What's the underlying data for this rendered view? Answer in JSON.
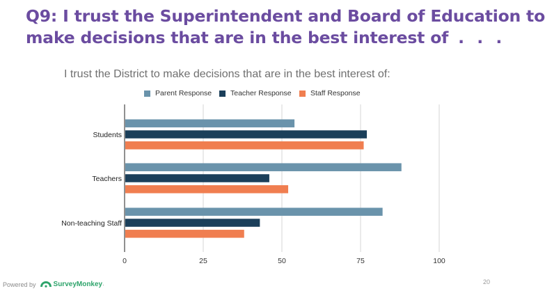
{
  "slide": {
    "title_line1": "Q9: I trust the Superintendent and Board of Education to",
    "title_line2": "make decisions that are in the best interest of",
    "title_ellipsis": ". . .",
    "page_number": "20",
    "title_color": "#6b4ca0"
  },
  "footer": {
    "powered_by": "Powered by",
    "brand": "SurveyMonkey",
    "brand_mark": "·",
    "logo_icon": "surveymonkey-logo-icon"
  },
  "chart_data": {
    "type": "bar",
    "orientation": "horizontal",
    "title": "I trust the District to make decisions that are in the best interest of:",
    "categories": [
      "Students",
      "Teachers",
      "Non-teaching Staff"
    ],
    "series": [
      {
        "name": "Parent Response",
        "color": "#6a93ab",
        "values": [
          54,
          88,
          82
        ]
      },
      {
        "name": "Teacher Response",
        "color": "#1b3f5a",
        "values": [
          77,
          46,
          43
        ]
      },
      {
        "name": "Staff Response",
        "color": "#f07e50",
        "values": [
          76,
          52,
          38
        ]
      }
    ],
    "x_ticks": [
      "0",
      "25",
      "50",
      "75",
      "100"
    ],
    "xlim": [
      0,
      100
    ],
    "xlabel": "",
    "ylabel": "",
    "grid": true,
    "legend_position": "top"
  }
}
